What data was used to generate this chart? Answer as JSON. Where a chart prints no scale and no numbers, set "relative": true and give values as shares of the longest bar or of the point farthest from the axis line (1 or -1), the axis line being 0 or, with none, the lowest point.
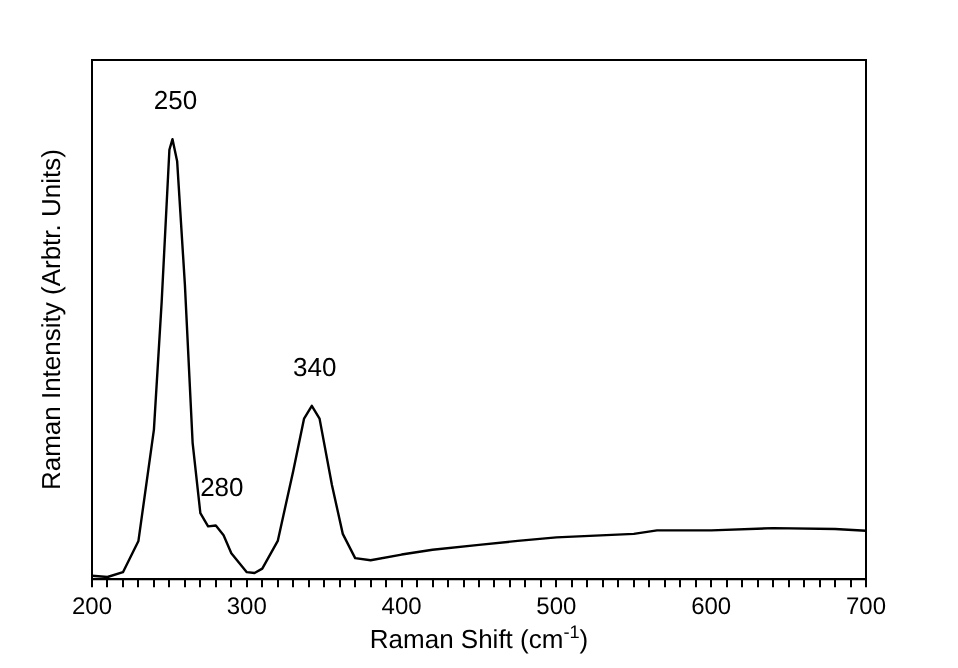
{
  "chart_data": {
    "type": "line",
    "relative": true,
    "xlabel": "Raman Shift (cm$^{-1}$)",
    "ylabel": "Raman Intensity (Arbtr. Units)",
    "xlim": [
      200,
      700
    ],
    "xticks": [
      200,
      {
        "value": 210,
        "label": null
      },
      {
        "value": 220,
        "label": null
      },
      {
        "value": 230,
        "label": null
      },
      {
        "value": 240,
        "label": null
      },
      {
        "value": 250,
        "label": null
      },
      {
        "value": 260,
        "label": null
      },
      {
        "value": 270,
        "label": null
      },
      {
        "value": 280,
        "label": null
      },
      {
        "value": 290,
        "label": null
      },
      300,
      {
        "value": 310,
        "label": null
      },
      {
        "value": 320,
        "label": null
      },
      {
        "value": 330,
        "label": null
      },
      {
        "value": 340,
        "label": null
      },
      {
        "value": 350,
        "label": null
      },
      {
        "value": 360,
        "label": null
      },
      {
        "value": 370,
        "label": null
      },
      {
        "value": 380,
        "label": null
      },
      {
        "value": 390,
        "label": null
      },
      400,
      {
        "value": 410,
        "label": null
      },
      {
        "value": 420,
        "label": null
      },
      {
        "value": 430,
        "label": null
      },
      {
        "value": 440,
        "label": null
      },
      {
        "value": 450,
        "label": null
      },
      {
        "value": 460,
        "label": null
      },
      {
        "value": 470,
        "label": null
      },
      {
        "value": 480,
        "label": null
      },
      {
        "value": 490,
        "label": null
      },
      500,
      {
        "value": 510,
        "label": null
      },
      {
        "value": 520,
        "label": null
      },
      {
        "value": 530,
        "label": null
      },
      {
        "value": 540,
        "label": null
      },
      {
        "value": 550,
        "label": null
      },
      {
        "value": 560,
        "label": null
      },
      {
        "value": 570,
        "label": null
      },
      {
        "value": 580,
        "label": null
      },
      {
        "value": 590,
        "label": null
      },
      600,
      {
        "value": 610,
        "label": null
      },
      {
        "value": 620,
        "label": null
      },
      {
        "value": 630,
        "label": null
      },
      {
        "value": 640,
        "label": null
      },
      {
        "value": 650,
        "label": null
      },
      {
        "value": 660,
        "label": null
      },
      {
        "value": 670,
        "label": null
      },
      {
        "value": 680,
        "label": null
      },
      {
        "value": 690,
        "label": null
      },
      700
    ],
    "tick_labels": "x",
    "grid": false,
    "legend": false,
    "marker": "none",
    "line_style": "solid",
    "series": [
      {
        "color": "#000000",
        "x": [
          200,
          210,
          220,
          230,
          240,
          245,
          250,
          252,
          255,
          260,
          265,
          270,
          275,
          280,
          285,
          290,
          300,
          305,
          310,
          320,
          330,
          337,
          342,
          347,
          355,
          362,
          370,
          380,
          400,
          420,
          450,
          475,
          500,
          550,
          565,
          600,
          640,
          680,
          700
        ],
        "values": [
          0.008,
          0.005,
          0.016,
          0.087,
          0.34,
          0.63,
          0.976,
          1,
          0.95,
          0.67,
          0.31,
          0.15,
          0.12,
          0.122,
          0.1,
          0.059,
          0.016,
          0.014,
          0.024,
          0.087,
          0.246,
          0.365,
          0.394,
          0.365,
          0.214,
          0.103,
          0.048,
          0.043,
          0.056,
          0.067,
          0.078,
          0.087,
          0.095,
          0.103,
          0.111,
          0.111,
          0.116,
          0.114,
          0.11
        ]
      }
    ],
    "annotations": [
      {
        "text": "250",
        "x": 250,
        "y": 1
      },
      {
        "text": "280",
        "x": 280,
        "y": 0.122
      },
      {
        "text": "340",
        "x": 340,
        "y": 0.394
      }
    ]
  }
}
